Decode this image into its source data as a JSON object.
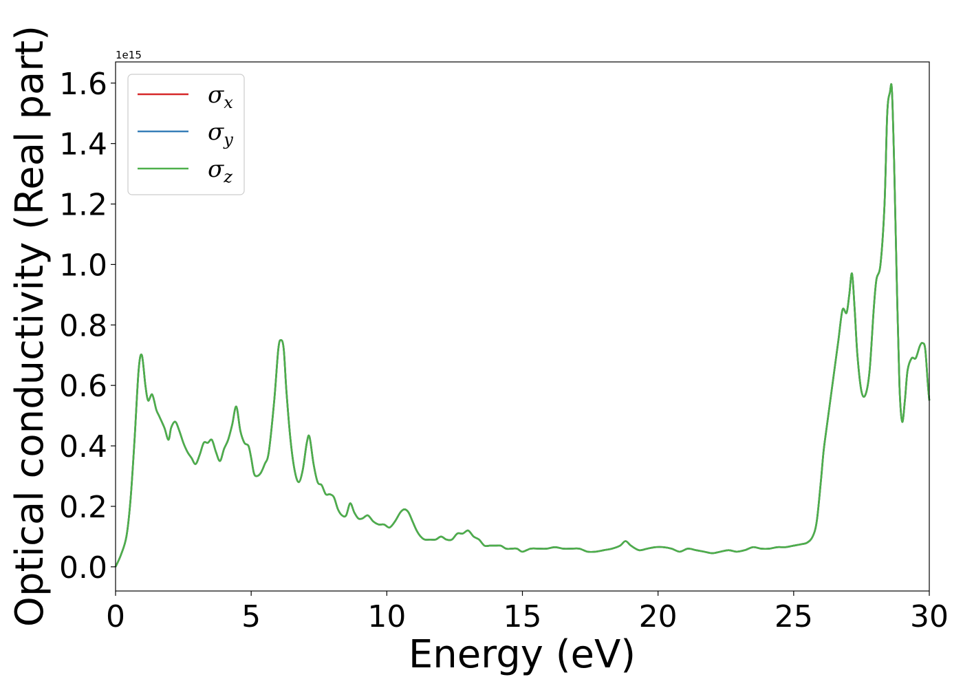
{
  "chart_data": {
    "type": "line",
    "xlabel": "Energy (eV)",
    "ylabel": "Optical conductivity (Real part)",
    "offset_text": "1e15",
    "scale": 1000000000000000.0,
    "xlim": [
      0,
      30
    ],
    "ylim": [
      -0.08,
      1.67
    ],
    "xticks": [
      0,
      5,
      10,
      15,
      20,
      25,
      30
    ],
    "xtick_labels": [
      "0",
      "5",
      "10",
      "15",
      "20",
      "25",
      "30"
    ],
    "yticks": [
      0.0,
      0.2,
      0.4,
      0.6,
      0.8,
      1.0,
      1.2,
      1.4,
      1.6
    ],
    "ytick_labels": [
      "0.0",
      "0.2",
      "0.4",
      "0.6",
      "0.8",
      "1.0",
      "1.2",
      "1.4",
      "1.6"
    ],
    "grid": false,
    "legend_position": "upper-left",
    "x": [
      0,
      0.2,
      0.4,
      0.55,
      0.7,
      0.85,
      0.97,
      1.1,
      1.2,
      1.35,
      1.5,
      1.6,
      1.8,
      1.95,
      2.05,
      2.2,
      2.35,
      2.5,
      2.65,
      2.8,
      2.95,
      3.1,
      3.25,
      3.4,
      3.55,
      3.7,
      3.85,
      4.0,
      4.15,
      4.3,
      4.45,
      4.6,
      4.75,
      4.9,
      5.0,
      5.1,
      5.2,
      5.35,
      5.5,
      5.65,
      5.85,
      6.0,
      6.1,
      6.2,
      6.3,
      6.45,
      6.6,
      6.75,
      6.9,
      7.05,
      7.15,
      7.3,
      7.45,
      7.6,
      7.75,
      7.9,
      8.05,
      8.2,
      8.35,
      8.5,
      8.65,
      8.8,
      8.95,
      9.1,
      9.3,
      9.5,
      9.7,
      9.9,
      10.1,
      10.3,
      10.5,
      10.65,
      10.8,
      10.95,
      11.1,
      11.25,
      11.4,
      11.6,
      11.8,
      12.0,
      12.2,
      12.4,
      12.6,
      12.8,
      13.0,
      13.2,
      13.4,
      13.6,
      13.8,
      14.0,
      14.2,
      14.4,
      14.6,
      14.8,
      15.0,
      15.3,
      15.6,
      15.9,
      16.2,
      16.5,
      16.8,
      17.1,
      17.4,
      17.7,
      18.0,
      18.3,
      18.6,
      18.8,
      19.0,
      19.3,
      19.6,
      19.9,
      20.2,
      20.5,
      20.8,
      21.1,
      21.4,
      21.7,
      22.0,
      22.3,
      22.6,
      22.9,
      23.2,
      23.5,
      23.8,
      24.1,
      24.4,
      24.7,
      25.0,
      25.3,
      25.5,
      25.7,
      25.85,
      26.0,
      26.1,
      26.2,
      26.35,
      26.5,
      26.65,
      26.8,
      26.95,
      27.05,
      27.15,
      27.25,
      27.35,
      27.5,
      27.65,
      27.8,
      27.95,
      28.05,
      28.2,
      28.35,
      28.45,
      28.55,
      28.62,
      28.7,
      28.8,
      28.9,
      29.0,
      29.1,
      29.2,
      29.35,
      29.5,
      29.65,
      29.75,
      29.85,
      29.95,
      30.0
    ],
    "series": [
      {
        "name": "σx",
        "color": "#d62728",
        "values": [
          0.0,
          0.04,
          0.1,
          0.22,
          0.42,
          0.65,
          0.7,
          0.6,
          0.55,
          0.57,
          0.52,
          0.5,
          0.46,
          0.42,
          0.46,
          0.48,
          0.45,
          0.41,
          0.38,
          0.36,
          0.34,
          0.37,
          0.41,
          0.41,
          0.42,
          0.38,
          0.35,
          0.39,
          0.42,
          0.47,
          0.53,
          0.45,
          0.41,
          0.4,
          0.36,
          0.31,
          0.3,
          0.31,
          0.34,
          0.38,
          0.55,
          0.72,
          0.75,
          0.72,
          0.58,
          0.42,
          0.32,
          0.28,
          0.32,
          0.41,
          0.43,
          0.34,
          0.28,
          0.27,
          0.24,
          0.24,
          0.23,
          0.19,
          0.17,
          0.17,
          0.21,
          0.18,
          0.16,
          0.16,
          0.17,
          0.15,
          0.14,
          0.14,
          0.13,
          0.15,
          0.18,
          0.19,
          0.18,
          0.15,
          0.12,
          0.1,
          0.09,
          0.09,
          0.09,
          0.1,
          0.09,
          0.09,
          0.11,
          0.11,
          0.12,
          0.1,
          0.09,
          0.07,
          0.07,
          0.07,
          0.07,
          0.06,
          0.06,
          0.06,
          0.05,
          0.06,
          0.06,
          0.06,
          0.065,
          0.06,
          0.06,
          0.06,
          0.05,
          0.05,
          0.055,
          0.06,
          0.07,
          0.085,
          0.07,
          0.055,
          0.06,
          0.065,
          0.065,
          0.06,
          0.05,
          0.06,
          0.055,
          0.05,
          0.045,
          0.05,
          0.055,
          0.05,
          0.055,
          0.065,
          0.06,
          0.06,
          0.065,
          0.065,
          0.07,
          0.075,
          0.08,
          0.1,
          0.15,
          0.28,
          0.38,
          0.45,
          0.55,
          0.65,
          0.75,
          0.85,
          0.84,
          0.9,
          0.97,
          0.85,
          0.7,
          0.58,
          0.57,
          0.65,
          0.85,
          0.95,
          1.0,
          1.2,
          1.5,
          1.57,
          1.58,
          1.35,
          0.95,
          0.6,
          0.48,
          0.55,
          0.65,
          0.69,
          0.69,
          0.73,
          0.74,
          0.72,
          0.6,
          0.55
        ]
      },
      {
        "name": "σy",
        "color": "#377eb8",
        "values": [
          0.0,
          0.04,
          0.1,
          0.22,
          0.42,
          0.65,
          0.7,
          0.6,
          0.55,
          0.57,
          0.52,
          0.5,
          0.46,
          0.42,
          0.46,
          0.48,
          0.45,
          0.41,
          0.38,
          0.36,
          0.34,
          0.37,
          0.41,
          0.41,
          0.42,
          0.38,
          0.35,
          0.39,
          0.42,
          0.47,
          0.53,
          0.45,
          0.41,
          0.4,
          0.36,
          0.31,
          0.3,
          0.31,
          0.34,
          0.38,
          0.55,
          0.72,
          0.75,
          0.72,
          0.58,
          0.42,
          0.32,
          0.28,
          0.32,
          0.41,
          0.43,
          0.34,
          0.28,
          0.27,
          0.24,
          0.24,
          0.23,
          0.19,
          0.17,
          0.17,
          0.21,
          0.18,
          0.16,
          0.16,
          0.17,
          0.15,
          0.14,
          0.14,
          0.13,
          0.15,
          0.18,
          0.19,
          0.18,
          0.15,
          0.12,
          0.1,
          0.09,
          0.09,
          0.09,
          0.1,
          0.09,
          0.09,
          0.11,
          0.11,
          0.12,
          0.1,
          0.09,
          0.07,
          0.07,
          0.07,
          0.07,
          0.06,
          0.06,
          0.06,
          0.05,
          0.06,
          0.06,
          0.06,
          0.065,
          0.06,
          0.06,
          0.06,
          0.05,
          0.05,
          0.055,
          0.06,
          0.07,
          0.085,
          0.07,
          0.055,
          0.06,
          0.065,
          0.065,
          0.06,
          0.05,
          0.06,
          0.055,
          0.05,
          0.045,
          0.05,
          0.055,
          0.05,
          0.055,
          0.065,
          0.06,
          0.06,
          0.065,
          0.065,
          0.07,
          0.075,
          0.08,
          0.1,
          0.15,
          0.28,
          0.38,
          0.45,
          0.55,
          0.65,
          0.75,
          0.85,
          0.84,
          0.9,
          0.97,
          0.85,
          0.7,
          0.58,
          0.57,
          0.65,
          0.85,
          0.95,
          1.0,
          1.2,
          1.5,
          1.57,
          1.58,
          1.35,
          0.95,
          0.6,
          0.48,
          0.55,
          0.65,
          0.69,
          0.69,
          0.73,
          0.74,
          0.72,
          0.6,
          0.55
        ]
      },
      {
        "name": "σz",
        "color": "#4daf4a",
        "values": [
          0.0,
          0.04,
          0.1,
          0.22,
          0.42,
          0.65,
          0.7,
          0.6,
          0.55,
          0.57,
          0.52,
          0.5,
          0.46,
          0.42,
          0.46,
          0.48,
          0.45,
          0.41,
          0.38,
          0.36,
          0.34,
          0.37,
          0.41,
          0.41,
          0.42,
          0.38,
          0.35,
          0.39,
          0.42,
          0.47,
          0.53,
          0.45,
          0.41,
          0.4,
          0.36,
          0.31,
          0.3,
          0.31,
          0.34,
          0.38,
          0.55,
          0.72,
          0.75,
          0.72,
          0.58,
          0.42,
          0.32,
          0.28,
          0.32,
          0.41,
          0.43,
          0.34,
          0.28,
          0.27,
          0.24,
          0.24,
          0.23,
          0.19,
          0.17,
          0.17,
          0.21,
          0.18,
          0.16,
          0.16,
          0.17,
          0.15,
          0.14,
          0.14,
          0.13,
          0.15,
          0.18,
          0.19,
          0.18,
          0.15,
          0.12,
          0.1,
          0.09,
          0.09,
          0.09,
          0.1,
          0.09,
          0.09,
          0.11,
          0.11,
          0.12,
          0.1,
          0.09,
          0.07,
          0.07,
          0.07,
          0.07,
          0.06,
          0.06,
          0.06,
          0.05,
          0.06,
          0.06,
          0.06,
          0.065,
          0.06,
          0.06,
          0.06,
          0.05,
          0.05,
          0.055,
          0.06,
          0.07,
          0.085,
          0.07,
          0.055,
          0.06,
          0.065,
          0.065,
          0.06,
          0.05,
          0.06,
          0.055,
          0.05,
          0.045,
          0.05,
          0.055,
          0.05,
          0.055,
          0.065,
          0.06,
          0.06,
          0.065,
          0.065,
          0.07,
          0.075,
          0.08,
          0.1,
          0.15,
          0.28,
          0.38,
          0.45,
          0.55,
          0.65,
          0.75,
          0.85,
          0.84,
          0.9,
          0.97,
          0.85,
          0.7,
          0.58,
          0.57,
          0.65,
          0.85,
          0.95,
          1.0,
          1.2,
          1.5,
          1.57,
          1.58,
          1.35,
          0.95,
          0.6,
          0.48,
          0.55,
          0.65,
          0.69,
          0.69,
          0.73,
          0.74,
          0.72,
          0.6,
          0.55
        ]
      }
    ]
  },
  "legend": {
    "entries": [
      {
        "symbol": "σ",
        "sub": "x",
        "color": "#d62728"
      },
      {
        "symbol": "σ",
        "sub": "y",
        "color": "#377eb8"
      },
      {
        "symbol": "σ",
        "sub": "z",
        "color": "#4daf4a"
      }
    ]
  }
}
